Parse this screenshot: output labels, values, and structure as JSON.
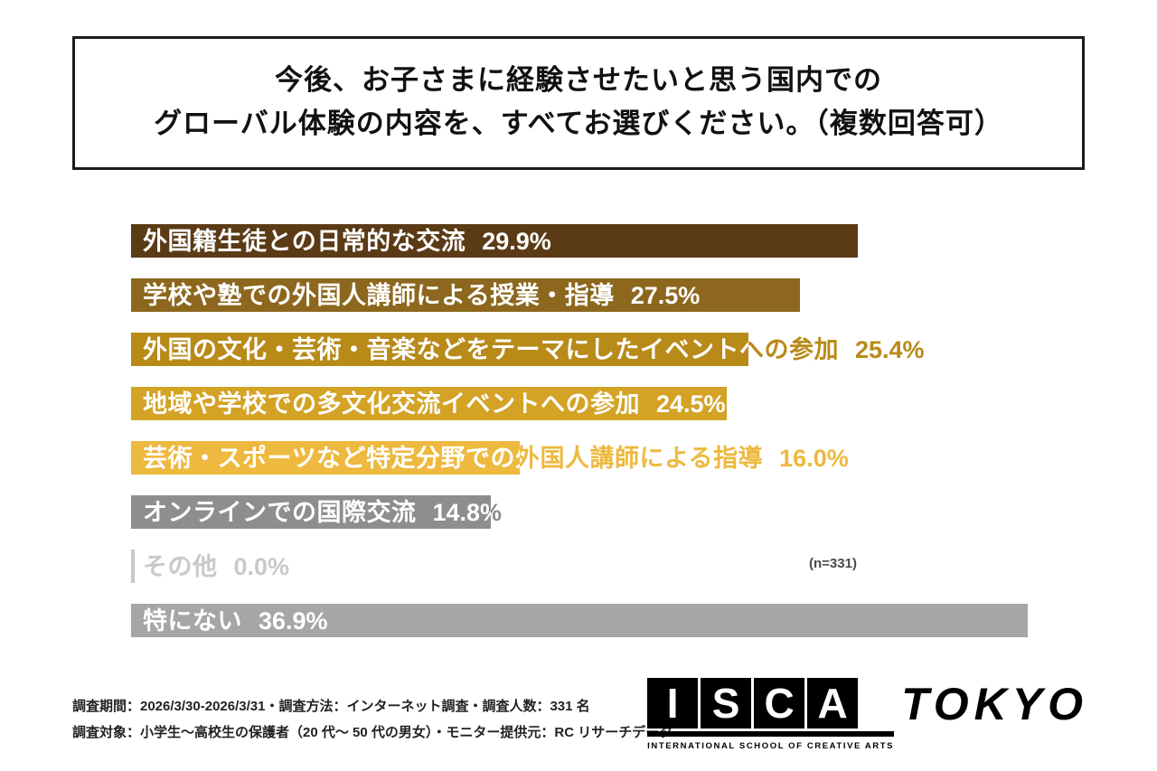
{
  "title": {
    "line1": "今後、お子さまに経験させたいと思う国内での",
    "line2": "グローバル体験の内容を、すべてお選びください。（複数回答可）"
  },
  "chart_data": {
    "type": "bar",
    "orientation": "horizontal",
    "unit": "%",
    "xlim": [
      0,
      37
    ],
    "n_label": "(n=331)",
    "series": [
      {
        "label": "外国籍生徒との日常的な交流",
        "value": 29.9,
        "value_label": "29.9%",
        "color": "#5b3a16"
      },
      {
        "label": "学校や塾での外国人講師による授業・指導",
        "value": 27.5,
        "value_label": "27.5%",
        "color": "#8c671d"
      },
      {
        "label": "外国の文化・芸術・音楽などをテーマにしたイベントへの参加",
        "value": 25.4,
        "value_label": "25.4%",
        "color": "#b88a18"
      },
      {
        "label": "地域や学校での多文化交流イベントへの参加",
        "value": 24.5,
        "value_label": "24.5%",
        "color": "#d4a325"
      },
      {
        "label": "芸術・スポーツなど特定分野での外国人講師による指導",
        "value": 16.0,
        "value_label": "16.0%",
        "color": "#eeb93f"
      },
      {
        "label": "オンラインでの国際交流",
        "value": 14.8,
        "value_label": "14.8%",
        "color": "#8e8e8e"
      },
      {
        "label": "その他",
        "value": 0.0,
        "value_label": "0.0%",
        "color": "#c9c9c9"
      },
      {
        "label": "特にない",
        "value": 36.9,
        "value_label": "36.9%",
        "color": "#a6a6a6"
      }
    ]
  },
  "footer": {
    "line1": "調査期間：2026/3/30-2026/3/31・調査方法：インターネット調査・調査人数：331 名",
    "line2": "調査対象：小学生〜高校生の保護者（20 代〜 50 代の男女）・モニター提供元：RC リサーチデータ"
  },
  "logo": {
    "letters": [
      "I",
      "S",
      "C",
      "A"
    ],
    "tokyo": "TOKYO",
    "subtitle": "INTERNATIONAL SCHOOL OF CREATIVE ARTS"
  }
}
